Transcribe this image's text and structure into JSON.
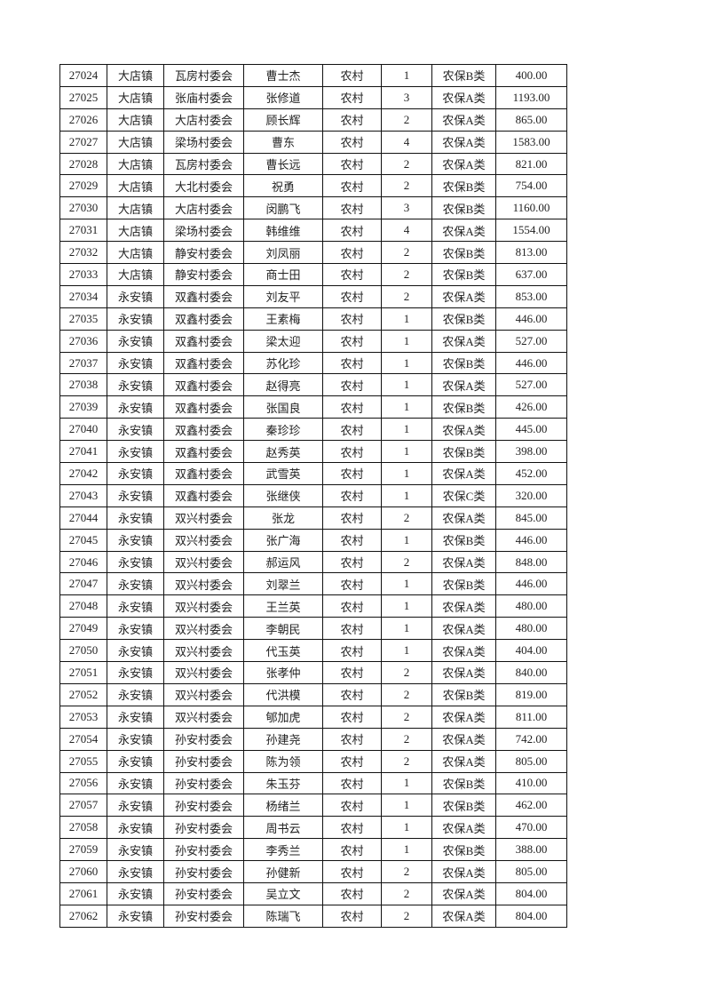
{
  "table": {
    "rows": [
      [
        "27024",
        "大店镇",
        "瓦房村委会",
        "曹士杰",
        "农村",
        "1",
        "农保B类",
        "400.00"
      ],
      [
        "27025",
        "大店镇",
        "张庙村委会",
        "张修道",
        "农村",
        "3",
        "农保A类",
        "1193.00"
      ],
      [
        "27026",
        "大店镇",
        "大店村委会",
        "顾长辉",
        "农村",
        "2",
        "农保A类",
        "865.00"
      ],
      [
        "27027",
        "大店镇",
        "梁场村委会",
        "曹东",
        "农村",
        "4",
        "农保A类",
        "1583.00"
      ],
      [
        "27028",
        "大店镇",
        "瓦房村委会",
        "曹长远",
        "农村",
        "2",
        "农保A类",
        "821.00"
      ],
      [
        "27029",
        "大店镇",
        "大北村委会",
        "祝勇",
        "农村",
        "2",
        "农保B类",
        "754.00"
      ],
      [
        "27030",
        "大店镇",
        "大店村委会",
        "闵鹏飞",
        "农村",
        "3",
        "农保B类",
        "1160.00"
      ],
      [
        "27031",
        "大店镇",
        "梁场村委会",
        "韩维维",
        "农村",
        "4",
        "农保A类",
        "1554.00"
      ],
      [
        "27032",
        "大店镇",
        "静安村委会",
        "刘凤丽",
        "农村",
        "2",
        "农保B类",
        "813.00"
      ],
      [
        "27033",
        "大店镇",
        "静安村委会",
        "商士田",
        "农村",
        "2",
        "农保B类",
        "637.00"
      ],
      [
        "27034",
        "永安镇",
        "双鑫村委会",
        "刘友平",
        "农村",
        "2",
        "农保A类",
        "853.00"
      ],
      [
        "27035",
        "永安镇",
        "双鑫村委会",
        "王素梅",
        "农村",
        "1",
        "农保B类",
        "446.00"
      ],
      [
        "27036",
        "永安镇",
        "双鑫村委会",
        "梁太迎",
        "农村",
        "1",
        "农保A类",
        "527.00"
      ],
      [
        "27037",
        "永安镇",
        "双鑫村委会",
        "苏化珍",
        "农村",
        "1",
        "农保B类",
        "446.00"
      ],
      [
        "27038",
        "永安镇",
        "双鑫村委会",
        "赵得亮",
        "农村",
        "1",
        "农保A类",
        "527.00"
      ],
      [
        "27039",
        "永安镇",
        "双鑫村委会",
        "张国良",
        "农村",
        "1",
        "农保B类",
        "426.00"
      ],
      [
        "27040",
        "永安镇",
        "双鑫村委会",
        "秦珍珍",
        "农村",
        "1",
        "农保A类",
        "445.00"
      ],
      [
        "27041",
        "永安镇",
        "双鑫村委会",
        "赵秀英",
        "农村",
        "1",
        "农保B类",
        "398.00"
      ],
      [
        "27042",
        "永安镇",
        "双鑫村委会",
        "武雪英",
        "农村",
        "1",
        "农保A类",
        "452.00"
      ],
      [
        "27043",
        "永安镇",
        "双鑫村委会",
        "张继侠",
        "农村",
        "1",
        "农保C类",
        "320.00"
      ],
      [
        "27044",
        "永安镇",
        "双兴村委会",
        "张龙",
        "农村",
        "2",
        "农保A类",
        "845.00"
      ],
      [
        "27045",
        "永安镇",
        "双兴村委会",
        "张广海",
        "农村",
        "1",
        "农保B类",
        "446.00"
      ],
      [
        "27046",
        "永安镇",
        "双兴村委会",
        "郝运风",
        "农村",
        "2",
        "农保A类",
        "848.00"
      ],
      [
        "27047",
        "永安镇",
        "双兴村委会",
        "刘翠兰",
        "农村",
        "1",
        "农保B类",
        "446.00"
      ],
      [
        "27048",
        "永安镇",
        "双兴村委会",
        "王兰英",
        "农村",
        "1",
        "农保A类",
        "480.00"
      ],
      [
        "27049",
        "永安镇",
        "双兴村委会",
        "李朝民",
        "农村",
        "1",
        "农保A类",
        "480.00"
      ],
      [
        "27050",
        "永安镇",
        "双兴村委会",
        "代玉英",
        "农村",
        "1",
        "农保A类",
        "404.00"
      ],
      [
        "27051",
        "永安镇",
        "双兴村委会",
        "张孝仲",
        "农村",
        "2",
        "农保A类",
        "840.00"
      ],
      [
        "27052",
        "永安镇",
        "双兴村委会",
        "代洪模",
        "农村",
        "2",
        "农保B类",
        "819.00"
      ],
      [
        "27053",
        "永安镇",
        "双兴村委会",
        "郇加虎",
        "农村",
        "2",
        "农保A类",
        "811.00"
      ],
      [
        "27054",
        "永安镇",
        "孙安村委会",
        "孙建尧",
        "农村",
        "2",
        "农保A类",
        "742.00"
      ],
      [
        "27055",
        "永安镇",
        "孙安村委会",
        "陈为领",
        "农村",
        "2",
        "农保A类",
        "805.00"
      ],
      [
        "27056",
        "永安镇",
        "孙安村委会",
        "朱玉芬",
        "农村",
        "1",
        "农保B类",
        "410.00"
      ],
      [
        "27057",
        "永安镇",
        "孙安村委会",
        "杨绪兰",
        "农村",
        "1",
        "农保B类",
        "462.00"
      ],
      [
        "27058",
        "永安镇",
        "孙安村委会",
        "周书云",
        "农村",
        "1",
        "农保A类",
        "470.00"
      ],
      [
        "27059",
        "永安镇",
        "孙安村委会",
        "李秀兰",
        "农村",
        "1",
        "农保B类",
        "388.00"
      ],
      [
        "27060",
        "永安镇",
        "孙安村委会",
        "孙健新",
        "农村",
        "2",
        "农保A类",
        "805.00"
      ],
      [
        "27061",
        "永安镇",
        "孙安村委会",
        "吴立文",
        "农村",
        "2",
        "农保A类",
        "804.00"
      ],
      [
        "27062",
        "永安镇",
        "孙安村委会",
        "陈瑞飞",
        "农村",
        "2",
        "农保A类",
        "804.00"
      ]
    ]
  }
}
